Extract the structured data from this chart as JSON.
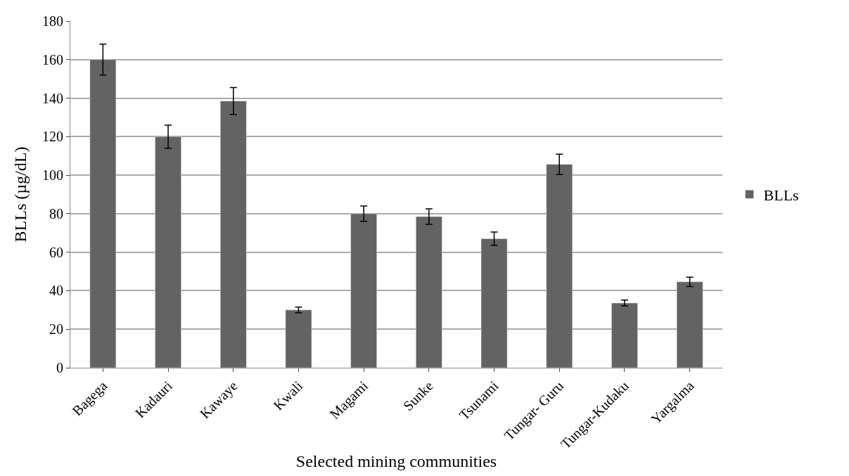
{
  "chart_data": {
    "type": "bar",
    "xlabel": "Selected mining communities",
    "ylabel": "BLLs (µg/dL)",
    "categories": [
      "Bagega",
      "Kadauri",
      "Kawaye",
      "Kwali",
      "Magami",
      "Sunke",
      "Tsunami",
      "Tungar- Guru",
      "Tungar-Kudaku",
      "Yargalma"
    ],
    "series": [
      {
        "name": "BLLs",
        "color": "#636363",
        "values": [
          160,
          120,
          138.5,
          30,
          80,
          78.5,
          67,
          105.6,
          33.6,
          44.6
        ],
        "errors": [
          8,
          6,
          7,
          1.5,
          4,
          4,
          3.5,
          5.3,
          1.5,
          2.4
        ]
      }
    ],
    "ylim": [
      0,
      180
    ],
    "yticks": [
      0,
      20,
      40,
      60,
      80,
      100,
      120,
      140,
      160,
      180
    ],
    "grid": "y",
    "legend": "right"
  }
}
